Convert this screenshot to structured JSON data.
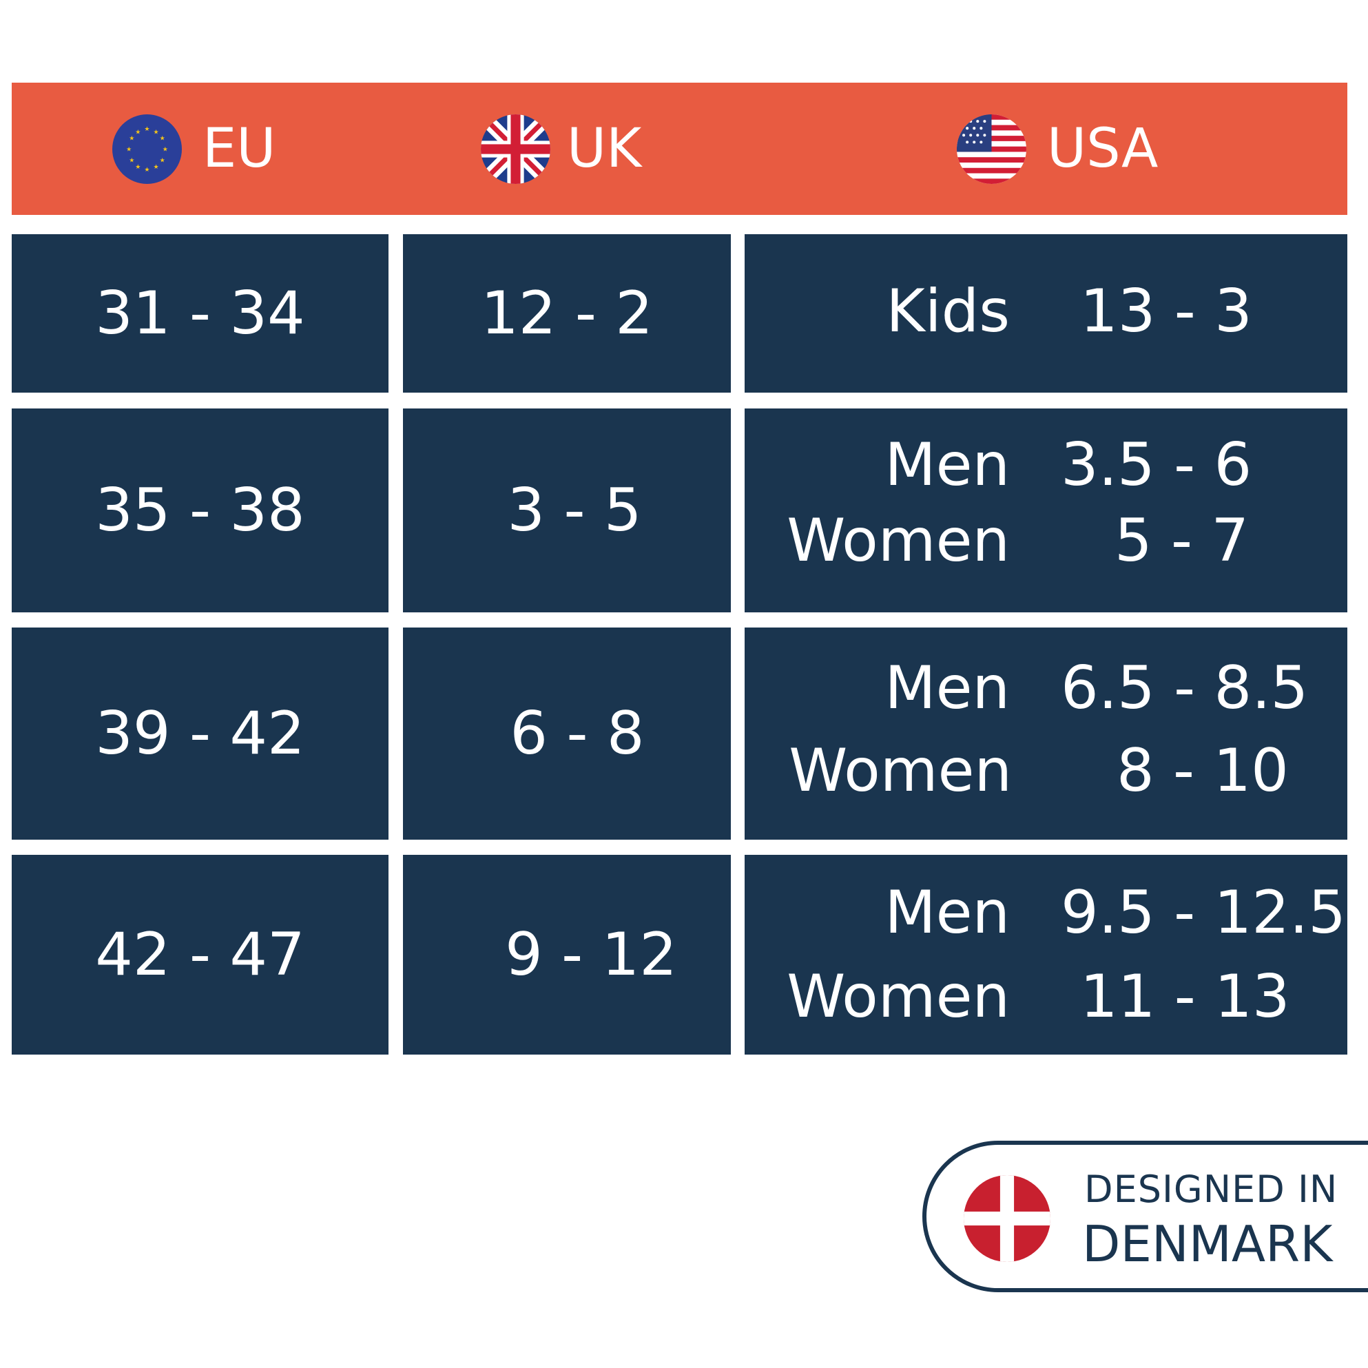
{
  "header": {
    "columns": [
      {
        "label": "EU",
        "flag": "eu-flag-icon"
      },
      {
        "label": "UK",
        "flag": "uk-flag-icon"
      },
      {
        "label": "USA",
        "flag": "usa-flag-icon"
      }
    ]
  },
  "rows": [
    {
      "eu": "31 - 34",
      "uk": "12 - 2",
      "usa": [
        {
          "gender": "Kids",
          "size": "13 - 3"
        }
      ]
    },
    {
      "eu": "35 - 38",
      "uk": "3 - 5",
      "usa": [
        {
          "gender": "Men",
          "size": "3.5 - 6"
        },
        {
          "gender": "Women",
          "size": "5 - 7"
        }
      ]
    },
    {
      "eu": "39 - 42",
      "uk": "6 - 8",
      "usa": [
        {
          "gender": "Men",
          "size": "6.5 - 8.5"
        },
        {
          "gender": "Women",
          "size": "8 - 10"
        }
      ]
    },
    {
      "eu": "42 - 47",
      "uk": "9 - 12",
      "usa": [
        {
          "gender": "Men",
          "size": "9.5 - 12.5"
        },
        {
          "gender": "Women",
          "size": "11 - 13"
        }
      ]
    }
  ],
  "badge": {
    "line1": "DESIGNED IN",
    "line2": "DENMARK",
    "flag": "denmark-flag-icon"
  },
  "colors": {
    "header_bg": "#E85B41",
    "cell_bg": "#1A354F",
    "text_light": "#FFFFFF",
    "badge_text": "#1A354F"
  }
}
